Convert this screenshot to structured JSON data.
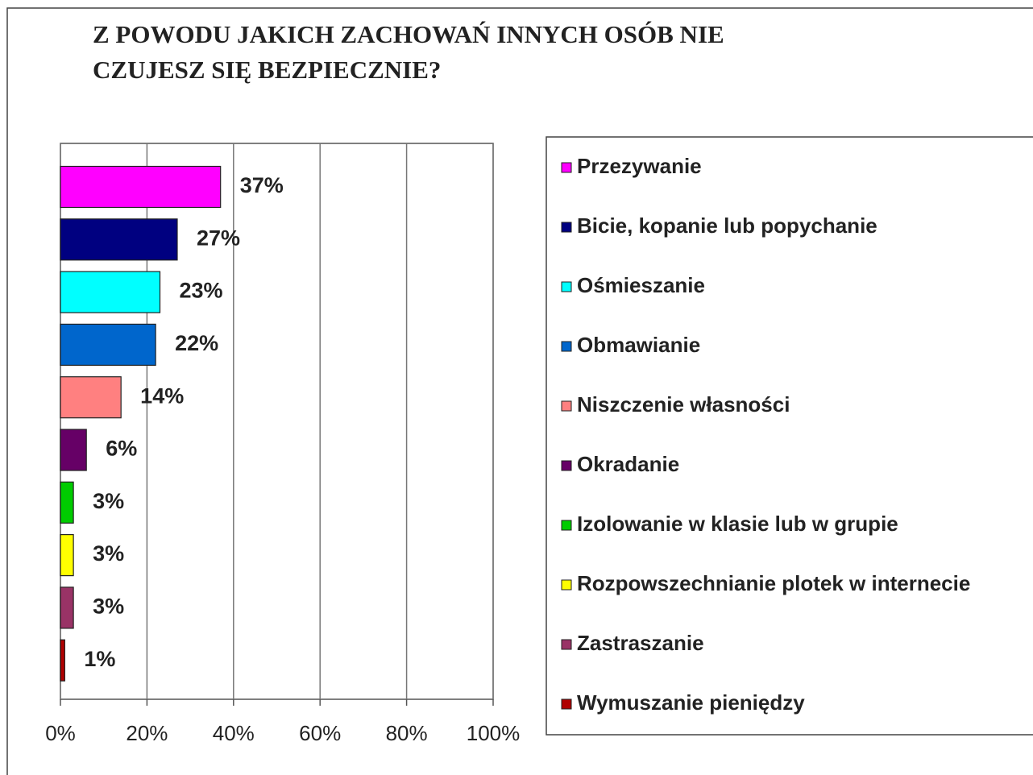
{
  "chart_data": {
    "type": "barh",
    "title": [
      "Z POWODU JAKICH ZACHOWAŃ INNYCH OSÓB NIE",
      "CZUJESZ SIĘ BEZPIECZNIE?"
    ],
    "categories": [
      "Przezywanie",
      "Bicie, kopanie lub popychanie",
      "Ośmieszanie",
      "Obmawianie",
      "Niszczenie własności",
      "Okradanie",
      "Izolowanie w klasie lub w grupie",
      "Rozpowszechnianie plotek w internecie",
      "Zastraszanie",
      "Wymuszanie pieniędzy"
    ],
    "values": [
      37,
      27,
      23,
      22,
      14,
      6,
      3,
      3,
      3,
      1
    ],
    "value_labels": [
      "37%",
      "27%",
      "23%",
      "22%",
      "14%",
      "6%",
      "3%",
      "3%",
      "3%",
      "1%"
    ],
    "colors": [
      "#ff00ff",
      "#000080",
      "#00ffff",
      "#0066cc",
      "#ff8080",
      "#660066",
      "#00cc00",
      "#ffff00",
      "#993366",
      "#b00000"
    ],
    "xlim": [
      0,
      100
    ],
    "xticks": [
      {
        "value": 0,
        "label": "0%"
      },
      {
        "value": 20,
        "label": "20%"
      },
      {
        "value": 40,
        "label": "40%"
      },
      {
        "value": 60,
        "label": "60%"
      },
      {
        "value": 80,
        "label": "80%"
      },
      {
        "value": 100,
        "label": "100%"
      }
    ],
    "grid": true,
    "legend": "right"
  }
}
